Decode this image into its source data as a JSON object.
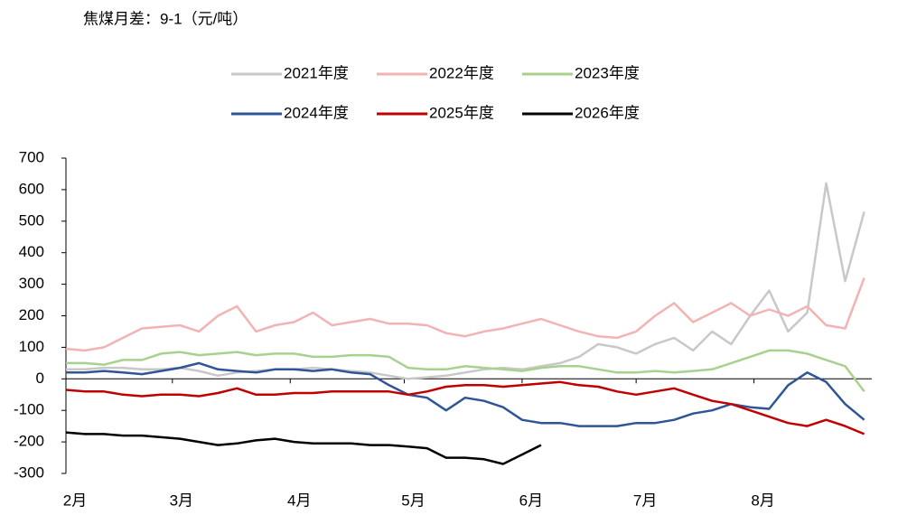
{
  "chart_data": {
    "type": "line",
    "title": "焦煤月差：9-1（元/吨）",
    "x": [
      0,
      5,
      10,
      15,
      20,
      25,
      30,
      35,
      40,
      45,
      50,
      55,
      60,
      65,
      70,
      75,
      80,
      85,
      90,
      95,
      100,
      105,
      110,
      115,
      120,
      125,
      130,
      135,
      140,
      145,
      150,
      155,
      160,
      165,
      170,
      175,
      180,
      185,
      190,
      195,
      200,
      205,
      210
    ],
    "xlim": [
      0,
      212
    ],
    "xticks": [
      {
        "value": 0,
        "label": "2月"
      },
      {
        "value": 28,
        "label": "3月"
      },
      {
        "value": 59,
        "label": "4月"
      },
      {
        "value": 89,
        "label": "5月"
      },
      {
        "value": 120,
        "label": "6月"
      },
      {
        "value": 150,
        "label": "7月"
      },
      {
        "value": 181,
        "label": "8月"
      }
    ],
    "ylim": [
      -300,
      700
    ],
    "yticks": [
      -300,
      -200,
      -100,
      0,
      100,
      200,
      300,
      400,
      500,
      600,
      700
    ],
    "grid": false,
    "legend": "top",
    "series": [
      {
        "name": "2021年度",
        "color": "#c8c8c8",
        "values": [
          30,
          30,
          35,
          35,
          30,
          30,
          35,
          25,
          10,
          20,
          25,
          30,
          30,
          35,
          30,
          25,
          20,
          10,
          0,
          5,
          10,
          20,
          30,
          35,
          30,
          40,
          50,
          70,
          110,
          100,
          80,
          110,
          130,
          90,
          150,
          110,
          200,
          280,
          150,
          210,
          620,
          310,
          530
        ]
      },
      {
        "name": "2022年度",
        "color": "#f2b3b3",
        "values": [
          95,
          90,
          100,
          130,
          160,
          165,
          170,
          150,
          200,
          230,
          150,
          170,
          180,
          210,
          170,
          180,
          190,
          175,
          175,
          170,
          145,
          135,
          150,
          160,
          175,
          190,
          170,
          150,
          135,
          130,
          150,
          200,
          240,
          180,
          210,
          240,
          200,
          220,
          200,
          230,
          170,
          160,
          320
        ]
      },
      {
        "name": "2023年度",
        "color": "#a9d18e",
        "values": [
          50,
          50,
          45,
          60,
          60,
          80,
          85,
          75,
          80,
          85,
          75,
          80,
          80,
          70,
          70,
          75,
          75,
          70,
          35,
          30,
          30,
          40,
          35,
          30,
          25,
          35,
          40,
          40,
          30,
          20,
          20,
          25,
          20,
          25,
          30,
          50,
          70,
          90,
          90,
          80,
          60,
          40,
          -40
        ]
      },
      {
        "name": "2024年度",
        "color": "#2f5597",
        "values": [
          20,
          20,
          25,
          20,
          15,
          25,
          35,
          50,
          30,
          25,
          20,
          30,
          30,
          25,
          30,
          20,
          15,
          -20,
          -50,
          -60,
          -100,
          -60,
          -70,
          -90,
          -130,
          -140,
          -140,
          -150,
          -150,
          -150,
          -140,
          -140,
          -130,
          -110,
          -100,
          -80,
          -90,
          -95,
          -20,
          20,
          -10,
          -80,
          -130
        ]
      },
      {
        "name": "2025年度",
        "color": "#c00000",
        "values": [
          -35,
          -40,
          -40,
          -50,
          -55,
          -50,
          -50,
          -55,
          -45,
          -30,
          -50,
          -50,
          -45,
          -45,
          -40,
          -40,
          -40,
          -40,
          -50,
          -40,
          -25,
          -20,
          -20,
          -25,
          -20,
          -15,
          -10,
          -20,
          -25,
          -40,
          -50,
          -40,
          -30,
          -50,
          -70,
          -80,
          -100,
          -120,
          -140,
          -150,
          -130,
          -150,
          -175
        ]
      },
      {
        "name": "2026年度",
        "color": "#000000",
        "values": [
          -170,
          -175,
          -175,
          -180,
          -180,
          -185,
          -190,
          -200,
          -210,
          -205,
          -195,
          -190,
          -200,
          -205,
          -205,
          -205,
          -210,
          -210,
          -215,
          -220,
          -250,
          -250,
          -255,
          -270,
          -240,
          -210,
          null,
          null,
          null,
          null,
          null,
          null,
          null,
          null,
          null,
          null,
          null,
          null,
          null,
          null,
          null,
          null,
          null
        ]
      }
    ]
  }
}
